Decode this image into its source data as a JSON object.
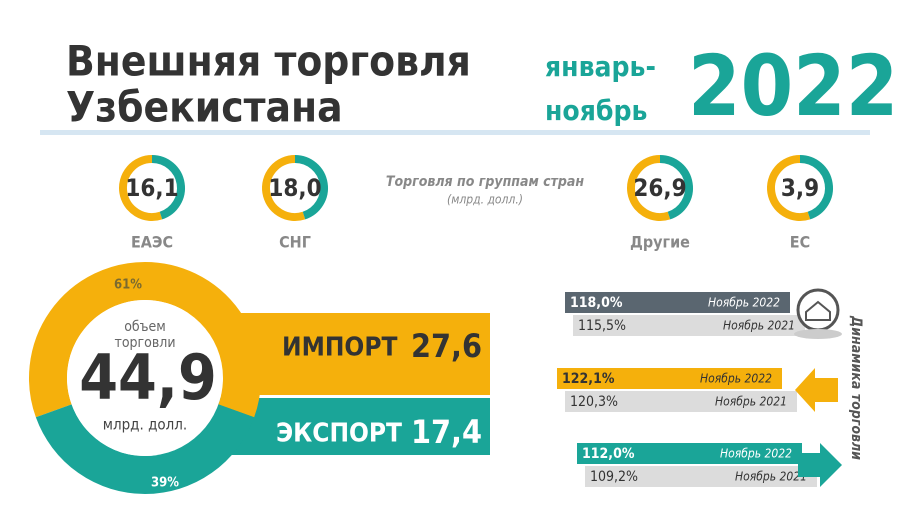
{
  "header": {
    "title_line1": "Внешняя торговля",
    "title_line2": "Узбекистана",
    "period_line1": "январь-",
    "period_line2": "ноябрь",
    "year": "2022"
  },
  "country_groups": {
    "title": "Торговля по группам стран",
    "unit": "(млрд. долл.)",
    "items": [
      {
        "value": "16,1",
        "label": "ЕАЭС"
      },
      {
        "value": "18,0",
        "label": "СНГ"
      },
      {
        "value": "26,9",
        "label": "Другие"
      },
      {
        "value": "3,9",
        "label": "ЕС"
      }
    ]
  },
  "volume": {
    "caption_line1": "объем",
    "caption_line2": "торговли",
    "value": "44,9",
    "unit": "млрд. долл.",
    "import_share": {
      "value": 61,
      "label": "61%"
    },
    "export_share": {
      "value": 39,
      "label": "39%"
    }
  },
  "flows": [
    {
      "label": "ИМПОРТ",
      "value": "27,6"
    },
    {
      "label": "ЭКСПОРТ",
      "value": "17,4"
    }
  ],
  "dynamics": {
    "title": "Динамика торговли",
    "rows": [
      {
        "current": "118,0%",
        "current_label": "Ноябрь 2022",
        "previous": "115,5%",
        "previous_label": "Ноябрь 2021"
      },
      {
        "current": "122,1%",
        "current_label": "Ноябрь 2022",
        "previous": "120,3%",
        "previous_label": "Ноябрь 2021"
      },
      {
        "current": "112,0%",
        "current_label": "Ноябрь 2022",
        "previous": "109,2%",
        "previous_label": "Ноябрь 2021"
      }
    ]
  }
}
